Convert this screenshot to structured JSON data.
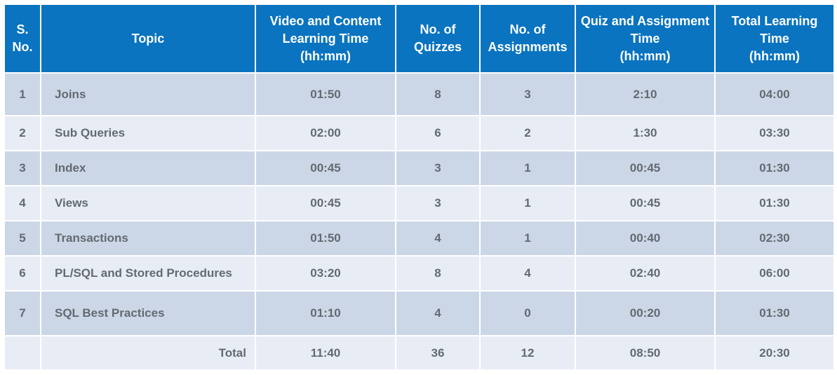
{
  "headers": {
    "sno": [
      "S.",
      "No."
    ],
    "topic": "Topic",
    "video": [
      "Video and Content",
      "Learning Time",
      "(hh:mm)"
    ],
    "quizzes": [
      "No. of",
      "Quizzes"
    ],
    "assignments": [
      "No. of",
      "Assignments"
    ],
    "quiz_time": [
      "Quiz and Assignment",
      "Time",
      "(hh:mm)"
    ],
    "total_time": [
      "Total Learning",
      "Time",
      "(hh:mm)"
    ]
  },
  "rows": [
    {
      "sno": "1",
      "topic": "Joins",
      "video": "01:50",
      "quizzes": "8",
      "assignments": "3",
      "quiz_time": "2:10",
      "total": "04:00"
    },
    {
      "sno": "2",
      "topic": "Sub Queries",
      "video": "02:00",
      "quizzes": "6",
      "assignments": "2",
      "quiz_time": "1:30",
      "total": "03:30"
    },
    {
      "sno": "3",
      "topic": "Index",
      "video": "00:45",
      "quizzes": "3",
      "assignments": "1",
      "quiz_time": "00:45",
      "total": "01:30"
    },
    {
      "sno": "4",
      "topic": "Views",
      "video": "00:45",
      "quizzes": "3",
      "assignments": "1",
      "quiz_time": "00:45",
      "total": "01:30"
    },
    {
      "sno": "5",
      "topic": "Transactions",
      "video": "01:50",
      "quizzes": "4",
      "assignments": "1",
      "quiz_time": "00:40",
      "total": "02:30"
    },
    {
      "sno": "6",
      "topic": "PL/SQL and Stored Procedures",
      "video": "03:20",
      "quizzes": "8",
      "assignments": "4",
      "quiz_time": "02:40",
      "total": "06:00"
    },
    {
      "sno": "7",
      "topic": "SQL Best Practices",
      "video": "01:10",
      "quizzes": "4",
      "assignments": "0",
      "quiz_time": "00:20",
      "total": "01:30"
    }
  ],
  "totals": {
    "label": "Total",
    "video": "11:40",
    "quizzes": "36",
    "assignments": "12",
    "quiz_time": "08:50",
    "total": "20:30"
  },
  "colors": {
    "header_bg": "#0a74c0",
    "row_dark": "#cbd6e7",
    "row_light": "#e8edf5",
    "text": "#636a70"
  }
}
